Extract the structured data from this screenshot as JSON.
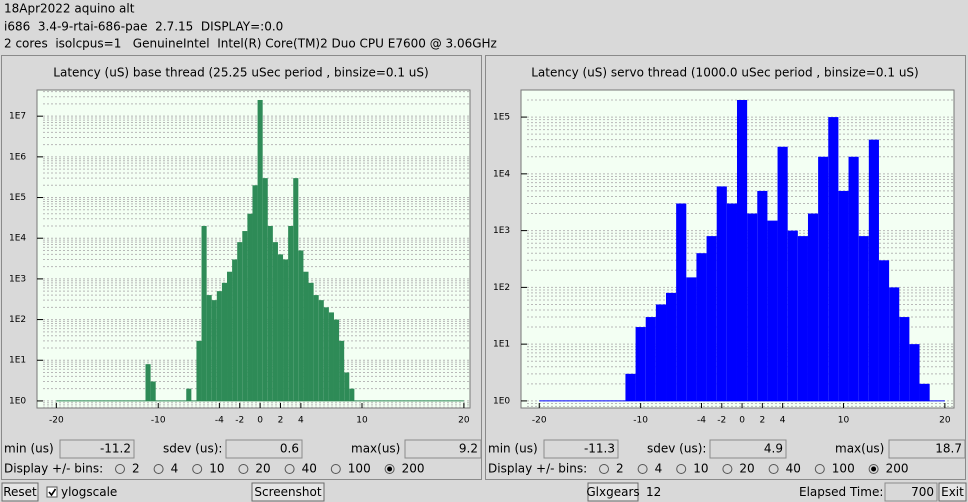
{
  "header": {
    "lines": [
      "18Apr2022 aquino alt",
      "i686  3.4-9-rtai-686-pae  2.7.15  DISPLAY=:0.0",
      "2 cores  isolcpus=1   GenuineIntel  Intel(R) Core(TM)2 Duo CPU E7600 @ 3.06GHz"
    ]
  },
  "panels": [
    {
      "chart_data": {
        "type": "bar",
        "title": "Latency (uS) base thread (25.25 uSec period , binsize=0.1 uS)",
        "x": [
          -11,
          -10.5,
          -7,
          -6,
          -5.5,
          -5,
          -4.5,
          -4,
          -3.5,
          -3,
          -2.5,
          -2,
          -1.5,
          -1,
          -0.5,
          0,
          0.5,
          1,
          1.5,
          2,
          2.5,
          3,
          3.5,
          4,
          4.5,
          5,
          5.5,
          6,
          6.5,
          7,
          7.5,
          8,
          8.5,
          9
        ],
        "values": [
          8,
          3,
          2,
          30,
          20000,
          400,
          300,
          500,
          800,
          1500,
          3000,
          8000,
          15000,
          40000,
          200000,
          25000000,
          300000,
          20000,
          8000,
          4000,
          3000,
          20000,
          300000,
          5000,
          1500,
          800,
          400,
          300,
          200,
          150,
          100,
          30,
          5,
          2
        ],
        "color": "#2e8b57",
        "background": "#f3fff3",
        "xlim": [
          -21.9,
          20.6
        ],
        "xticks": [
          -20,
          -10,
          -4,
          -2,
          0,
          2,
          4,
          10,
          20
        ],
        "ylim": [
          0.67,
          44000000
        ],
        "yticks": [
          {
            "value": 1,
            "label": "1E0"
          },
          {
            "value": 10,
            "label": "1E1"
          },
          {
            "value": 100,
            "label": "1E2"
          },
          {
            "value": 1000,
            "label": "1E3"
          },
          {
            "value": 10000,
            "label": "1E4"
          },
          {
            "value": 100000,
            "label": "1E5"
          },
          {
            "value": 1000000,
            "label": "1E6"
          },
          {
            "value": 10000000,
            "label": "1E7"
          }
        ],
        "log_scale": true,
        "grid": true
      },
      "stats": {
        "min_label": "min (us)",
        "min": -11.2,
        "sdev_label": "sdev (us):",
        "sdev": 0.6,
        "max_label": "max(us)",
        "max": 9.2
      },
      "bins": {
        "label": "Display +/- bins:",
        "options": [
          2,
          4,
          10,
          20,
          40,
          100,
          200
        ],
        "selected": 200
      }
    },
    {
      "chart_data": {
        "type": "bar",
        "title": "Latency (uS) servo thread (1000.0 uSec period , binsize=0.1 uS)",
        "x": [
          -11,
          -10,
          -9,
          -8,
          -7,
          -6,
          -5,
          -4,
          -3,
          -2,
          -1,
          0,
          1,
          2,
          3,
          4,
          5,
          6,
          7,
          8,
          9,
          10,
          11,
          12,
          13,
          14,
          15,
          16,
          17,
          18
        ],
        "values": [
          3,
          20,
          30,
          50,
          80,
          3000,
          150,
          400,
          800,
          6000,
          3000,
          200000,
          2000,
          5000,
          1500,
          30000,
          1000,
          800,
          2000,
          20000,
          100000,
          5000,
          20000,
          800,
          40000,
          300,
          100,
          30,
          10,
          2
        ],
        "color": "#0000ff",
        "background": "#f3fff3",
        "xlim": [
          -21.8,
          20.9
        ],
        "xticks": [
          -20,
          -10,
          -4,
          -2,
          0,
          2,
          4,
          10,
          20
        ],
        "ylim": [
          0.75,
          300000
        ],
        "yticks": [
          {
            "value": 1,
            "label": "1E0"
          },
          {
            "value": 10,
            "label": "1E1"
          },
          {
            "value": 100,
            "label": "1E2"
          },
          {
            "value": 1000,
            "label": "1E3"
          },
          {
            "value": 10000,
            "label": "1E4"
          },
          {
            "value": 100000,
            "label": "1E5"
          }
        ],
        "log_scale": true,
        "grid": true
      },
      "stats": {
        "min_label": "min (us)",
        "min": -11.3,
        "sdev_label": "sdev (us):",
        "sdev": 4.9,
        "max_label": "max(us)",
        "max": 18.7
      },
      "bins": {
        "label": "Display +/- bins:",
        "options": [
          2,
          4,
          10,
          20,
          40,
          100,
          200
        ],
        "selected": 200
      }
    }
  ],
  "footer": {
    "reset": "Reset",
    "ylogscale": {
      "label": "ylogscale",
      "checked": true
    },
    "screenshot": "Screenshot",
    "glxgears": "Glxgears",
    "glxgears_count": 12,
    "elapsed_label": "Elapsed Time:",
    "elapsed": 700,
    "exit": "Exit"
  }
}
